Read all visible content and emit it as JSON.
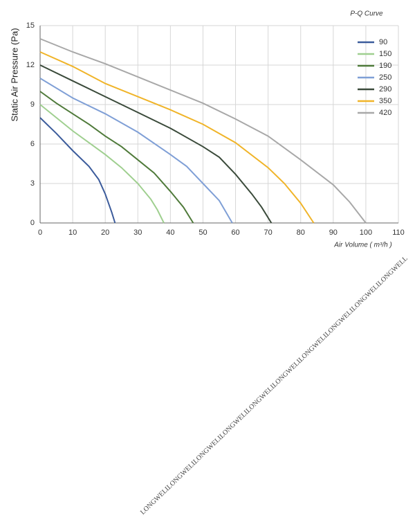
{
  "chart_data": {
    "type": "line",
    "title": "P-Q Curve",
    "y_label": "Static Air Pressure  (Pa)",
    "x_label": "Air Volume ( m³/h )",
    "xlim": [
      0,
      110
    ],
    "xticks": [
      0,
      10,
      20,
      30,
      40,
      50,
      60,
      70,
      80,
      90,
      100,
      110
    ],
    "ylim": [
      0,
      15
    ],
    "yticks": [
      0,
      3,
      6,
      9,
      12,
      15
    ],
    "grid": true,
    "legend": "upper right",
    "series": [
      {
        "name": "90",
        "color": "#3b5b9b",
        "x": [
          0,
          5,
          10,
          15,
          18,
          20,
          22,
          23
        ],
        "values": [
          8,
          6.8,
          5.5,
          4.3,
          3.3,
          2.2,
          0.8,
          0
        ]
      },
      {
        "name": "150",
        "color": "#9fcf8f",
        "x": [
          0,
          5,
          10,
          15,
          20,
          25,
          30,
          34,
          36,
          38
        ],
        "values": [
          9,
          8,
          7,
          6.1,
          5.2,
          4.2,
          3,
          1.8,
          1,
          0
        ]
      },
      {
        "name": "190",
        "color": "#4f7a3a",
        "x": [
          0,
          5,
          10,
          15,
          20,
          25,
          30,
          35,
          40,
          44,
          47
        ],
        "values": [
          10,
          9.1,
          8.3,
          7.5,
          6.6,
          5.8,
          4.8,
          3.8,
          2.4,
          1.2,
          0
        ]
      },
      {
        "name": "250",
        "color": "#7f9fd6",
        "x": [
          0,
          10,
          20,
          30,
          40,
          45,
          50,
          55,
          59
        ],
        "values": [
          11,
          9.5,
          8.3,
          6.9,
          5.2,
          4.3,
          3,
          1.7,
          0
        ]
      },
      {
        "name": "290",
        "color": "#3a4a3a",
        "x": [
          0,
          10,
          20,
          30,
          40,
          50,
          55,
          60,
          65,
          68,
          71
        ],
        "values": [
          12,
          10.8,
          9.6,
          8.4,
          7.2,
          5.8,
          5,
          3.7,
          2.2,
          1.2,
          0
        ]
      },
      {
        "name": "350",
        "color": "#f0b428",
        "x": [
          0,
          10,
          20,
          30,
          40,
          50,
          60,
          70,
          75,
          80,
          84
        ],
        "values": [
          13,
          11.9,
          10.6,
          9.6,
          8.6,
          7.5,
          6.1,
          4.2,
          3,
          1.5,
          0
        ]
      },
      {
        "name": "420",
        "color": "#a8a8a8",
        "x": [
          0,
          10,
          20,
          30,
          40,
          50,
          60,
          70,
          80,
          90,
          95,
          100
        ],
        "values": [
          14,
          13,
          12.1,
          11.1,
          10.1,
          9.1,
          7.9,
          6.6,
          4.8,
          2.9,
          1.6,
          0
        ]
      }
    ],
    "watermark": "LONGWELL"
  }
}
